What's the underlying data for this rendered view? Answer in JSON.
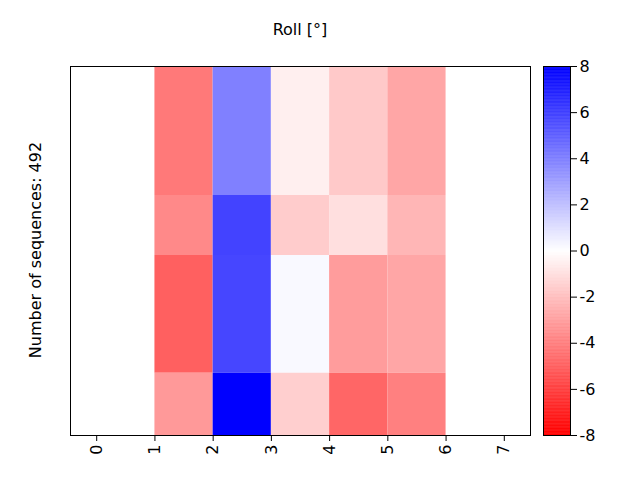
{
  "chart_data": {
    "type": "heatmap",
    "title": "Roll [°]",
    "y_label": "Number of sequences: 492",
    "x_edges": [
      1,
      2,
      3,
      4,
      5,
      6
    ],
    "y_edges": [
      0,
      172,
      252,
      409,
      492
    ],
    "xlim": [
      -0.45,
      7.45
    ],
    "xticks": [
      0,
      1,
      2,
      3,
      4,
      5,
      6,
      7
    ],
    "ylim": [
      0,
      492
    ],
    "tick_labels": "x",
    "cells": [
      [
        -4.2,
        4.0,
        -0.5,
        -1.7,
        -2.8
      ],
      [
        -3.7,
        5.9,
        -1.6,
        -1.0,
        -2.3
      ],
      [
        -5.0,
        5.8,
        0.2,
        -3.1,
        -2.8
      ],
      [
        -3.2,
        8.0,
        -1.5,
        -4.8,
        -4.0
      ]
    ],
    "colorbar": {
      "range": [
        -8,
        8
      ],
      "ticks": [
        -8,
        -6,
        -4,
        -2,
        0,
        2,
        4,
        6,
        8
      ],
      "colors": [
        "#ff0000",
        "#ffffff",
        "#0000ff"
      ]
    }
  }
}
